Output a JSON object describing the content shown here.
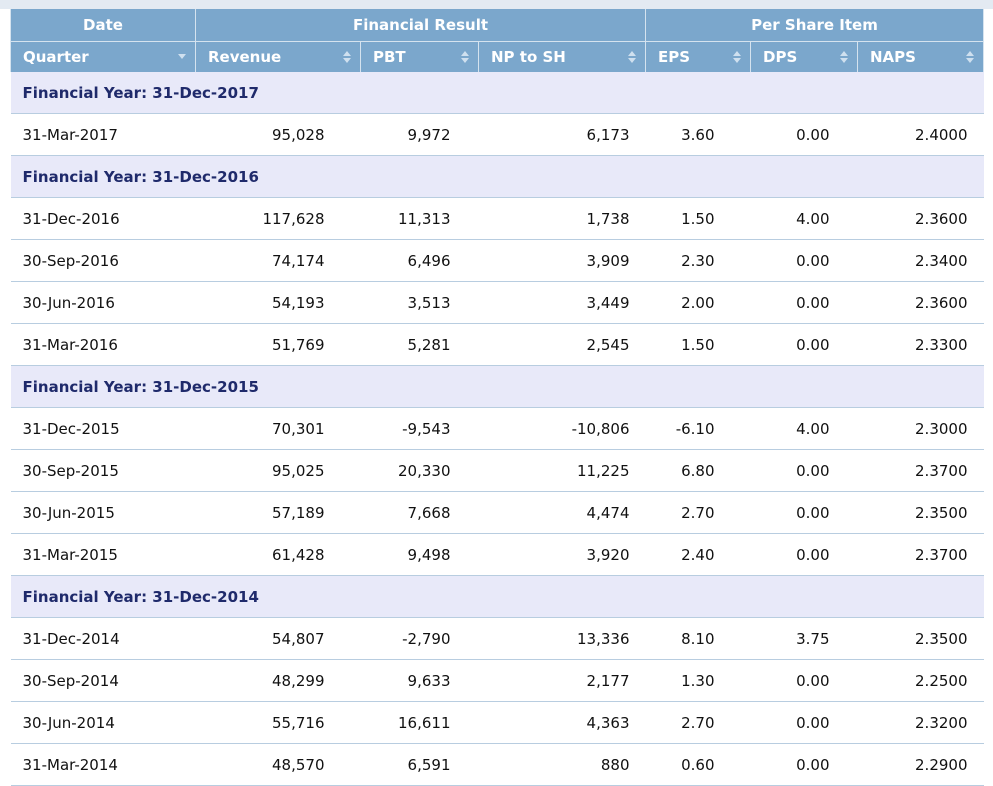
{
  "header": {
    "groups": [
      "Date",
      "Financial Result",
      "Per Share Item"
    ],
    "columns": [
      "Quarter",
      "Revenue",
      "PBT",
      "NP to SH",
      "EPS",
      "DPS",
      "NAPS"
    ]
  },
  "colors": {
    "header_bg": "#7ba7cc",
    "group_row_bg": "#e8e9f9",
    "group_text": "#1f2a6b"
  },
  "sections": [
    {
      "label": "Financial Year: 31-Dec-2017",
      "rows": [
        [
          "31-Mar-2017",
          "95,028",
          "9,972",
          "6,173",
          "3.60",
          "0.00",
          "2.4000"
        ]
      ]
    },
    {
      "label": "Financial Year: 31-Dec-2016",
      "rows": [
        [
          "31-Dec-2016",
          "117,628",
          "11,313",
          "1,738",
          "1.50",
          "4.00",
          "2.3600"
        ],
        [
          "30-Sep-2016",
          "74,174",
          "6,496",
          "3,909",
          "2.30",
          "0.00",
          "2.3400"
        ],
        [
          "30-Jun-2016",
          "54,193",
          "3,513",
          "3,449",
          "2.00",
          "0.00",
          "2.3600"
        ],
        [
          "31-Mar-2016",
          "51,769",
          "5,281",
          "2,545",
          "1.50",
          "0.00",
          "2.3300"
        ]
      ]
    },
    {
      "label": "Financial Year: 31-Dec-2015",
      "rows": [
        [
          "31-Dec-2015",
          "70,301",
          "-9,543",
          "-10,806",
          "-6.10",
          "4.00",
          "2.3000"
        ],
        [
          "30-Sep-2015",
          "95,025",
          "20,330",
          "11,225",
          "6.80",
          "0.00",
          "2.3700"
        ],
        [
          "30-Jun-2015",
          "57,189",
          "7,668",
          "4,474",
          "2.70",
          "0.00",
          "2.3500"
        ],
        [
          "31-Mar-2015",
          "61,428",
          "9,498",
          "3,920",
          "2.40",
          "0.00",
          "2.3700"
        ]
      ]
    },
    {
      "label": "Financial Year: 31-Dec-2014",
      "rows": [
        [
          "31-Dec-2014",
          "54,807",
          "-2,790",
          "13,336",
          "8.10",
          "3.75",
          "2.3500"
        ],
        [
          "30-Sep-2014",
          "48,299",
          "9,633",
          "2,177",
          "1.30",
          "0.00",
          "2.2500"
        ],
        [
          "30-Jun-2014",
          "55,716",
          "16,611",
          "4,363",
          "2.70",
          "0.00",
          "2.3200"
        ],
        [
          "31-Mar-2014",
          "48,570",
          "6,591",
          "880",
          "0.60",
          "0.00",
          "2.2900"
        ]
      ]
    }
  ]
}
